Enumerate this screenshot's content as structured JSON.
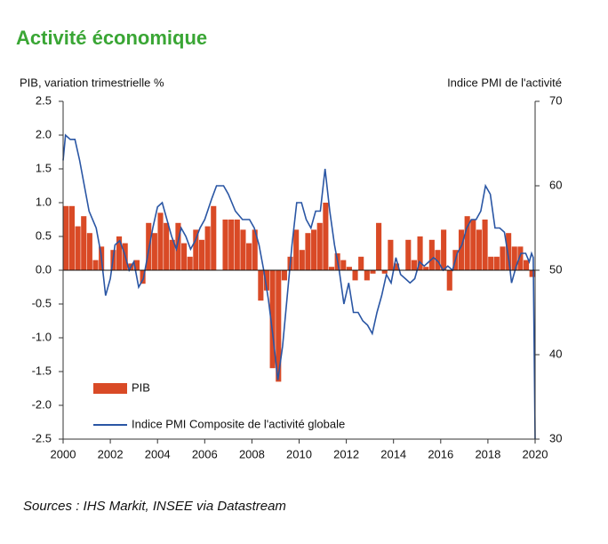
{
  "chart_data": {
    "type": "combo",
    "title": "Activité économique",
    "ylabel": "PIB, variation trimestrielle  %",
    "y2label": "Indice PMI de l'activité",
    "source": "Sources : IHS Markit, INSEE via Datastream",
    "xlim": [
      2000,
      2020
    ],
    "xticks": [
      2000,
      2002,
      2004,
      2006,
      2008,
      2010,
      2012,
      2014,
      2016,
      2018,
      2020
    ],
    "ylim": [
      -2.5,
      2.5
    ],
    "yticks": [
      {
        "value": 2.5,
        "label": "2.5"
      },
      {
        "value": 2,
        "label": "2.0"
      },
      {
        "value": 1.5,
        "label": "1.5"
      },
      {
        "value": 1,
        "label": "1.0"
      },
      {
        "value": 0.5,
        "label": "0.5"
      },
      {
        "value": 0,
        "label": "0.0"
      },
      {
        "value": -0.5,
        "label": "-0.5"
      },
      {
        "value": -1,
        "label": "-1.0"
      },
      {
        "value": -1.5,
        "label": "-1.5"
      },
      {
        "value": -2,
        "label": "-2.0"
      },
      {
        "value": -2.5,
        "label": "-2.5"
      }
    ],
    "y2lim": [
      30,
      70
    ],
    "y2ticks": [
      30,
      40,
      50,
      60,
      70
    ],
    "series": [
      {
        "name": "PIB",
        "type": "bar",
        "color": "#d94a26",
        "x": [
          2000.125,
          2000.375,
          2000.625,
          2000.875,
          2001.125,
          2001.375,
          2001.625,
          2001.875,
          2002.125,
          2002.375,
          2002.625,
          2002.875,
          2003.125,
          2003.375,
          2003.625,
          2003.875,
          2004.125,
          2004.375,
          2004.625,
          2004.875,
          2005.125,
          2005.375,
          2005.625,
          2005.875,
          2006.125,
          2006.375,
          2006.625,
          2006.875,
          2007.125,
          2007.375,
          2007.625,
          2007.875,
          2008.125,
          2008.375,
          2008.625,
          2008.875,
          2009.125,
          2009.375,
          2009.625,
          2009.875,
          2010.125,
          2010.375,
          2010.625,
          2010.875,
          2011.125,
          2011.375,
          2011.625,
          2011.875,
          2012.125,
          2012.375,
          2012.625,
          2012.875,
          2013.125,
          2013.375,
          2013.625,
          2013.875,
          2014.125,
          2014.375,
          2014.625,
          2014.875,
          2015.125,
          2015.375,
          2015.625,
          2015.875,
          2016.125,
          2016.375,
          2016.625,
          2016.875,
          2017.125,
          2017.375,
          2017.625,
          2017.875,
          2018.125,
          2018.375,
          2018.625,
          2018.875,
          2019.125,
          2019.375,
          2019.625,
          2019.875
        ],
        "values": [
          0.95,
          0.95,
          0.65,
          0.8,
          0.55,
          0.15,
          0.35,
          0.0,
          0.3,
          0.5,
          0.4,
          0.1,
          0.15,
          -0.2,
          0.7,
          0.55,
          0.85,
          0.7,
          0.45,
          0.7,
          0.4,
          0.2,
          0.6,
          0.45,
          0.65,
          0.95,
          0.0,
          0.75,
          0.75,
          0.75,
          0.6,
          0.4,
          0.6,
          -0.45,
          -0.3,
          -1.45,
          -1.65,
          -0.15,
          0.2,
          0.6,
          0.3,
          0.55,
          0.6,
          0.7,
          1.0,
          0.05,
          0.25,
          0.15,
          0.05,
          -0.15,
          0.2,
          -0.15,
          -0.05,
          0.7,
          -0.05,
          0.45,
          0.1,
          0.0,
          0.45,
          0.15,
          0.5,
          0.05,
          0.45,
          0.3,
          0.6,
          -0.3,
          0.3,
          0.6,
          0.8,
          0.75,
          0.6,
          0.75,
          0.2,
          0.2,
          0.35,
          0.55,
          0.35,
          0.35,
          0.15,
          -0.1
        ]
      },
      {
        "name": "Indice PMI Composite de l'activité globale",
        "type": "line",
        "axis": "y2",
        "color": "#2a56a4",
        "x": [
          2000,
          2000.1,
          2000.3,
          2000.5,
          2000.7,
          2000.9,
          2001.1,
          2001.4,
          2001.6,
          2001.8,
          2002.0,
          2002.2,
          2002.4,
          2002.6,
          2002.8,
          2003.0,
          2003.2,
          2003.4,
          2003.6,
          2003.8,
          2004.0,
          2004.2,
          2004.4,
          2004.6,
          2004.8,
          2005.0,
          2005.2,
          2005.4,
          2005.6,
          2005.8,
          2006.0,
          2006.3,
          2006.5,
          2006.8,
          2007.0,
          2007.3,
          2007.6,
          2007.9,
          2008.1,
          2008.3,
          2008.5,
          2008.7,
          2008.9,
          2009.1,
          2009.3,
          2009.5,
          2009.7,
          2009.9,
          2010.1,
          2010.3,
          2010.5,
          2010.7,
          2010.9,
          2011.1,
          2011.3,
          2011.5,
          2011.7,
          2011.9,
          2012.1,
          2012.3,
          2012.5,
          2012.7,
          2012.9,
          2013.1,
          2013.3,
          2013.5,
          2013.7,
          2013.9,
          2014.1,
          2014.3,
          2014.5,
          2014.7,
          2014.9,
          2015.1,
          2015.3,
          2015.5,
          2015.7,
          2015.9,
          2016.1,
          2016.3,
          2016.5,
          2016.7,
          2016.9,
          2017.1,
          2017.3,
          2017.5,
          2017.7,
          2017.9,
          2018.1,
          2018.3,
          2018.5,
          2018.7,
          2018.9,
          2019.0,
          2019.2,
          2019.4,
          2019.6,
          2019.75,
          2019.85,
          2019.92,
          2020.0
        ],
        "values": [
          63,
          66,
          65.5,
          65.5,
          63,
          60,
          57,
          55,
          52,
          47,
          49,
          53,
          53.5,
          52,
          50,
          51,
          48,
          49,
          52,
          55,
          57.5,
          58,
          56,
          54,
          52.5,
          55,
          54,
          52.5,
          53.5,
          55,
          56,
          58.5,
          60,
          60,
          59,
          57,
          56,
          56,
          55,
          53,
          50,
          46.5,
          42,
          37,
          41,
          47,
          53,
          58,
          58,
          56,
          55,
          57,
          57,
          62,
          57,
          53,
          50,
          46,
          48.5,
          45,
          45,
          44,
          43.5,
          42.5,
          45,
          47,
          49.5,
          48.5,
          51.5,
          49.5,
          49,
          48.5,
          49,
          51,
          50.5,
          51,
          51.5,
          51,
          50,
          50.5,
          50,
          52,
          53,
          55,
          56,
          56,
          57,
          60,
          59,
          55,
          55,
          54.5,
          51,
          48.5,
          50.5,
          52,
          52,
          51,
          52,
          51.5,
          30
        ]
      }
    ]
  }
}
